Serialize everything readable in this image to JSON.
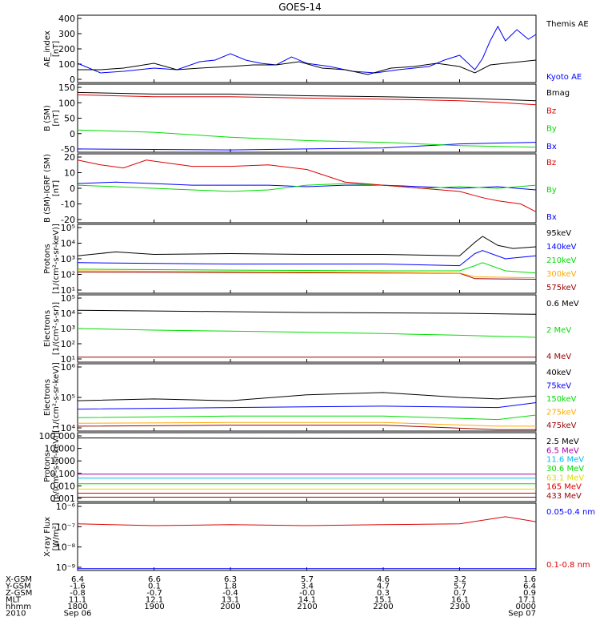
{
  "title": "GOES-14",
  "colors": {
    "black": "#000000",
    "blue": "#0000ff",
    "green": "#00dd00",
    "red": "#dd0000",
    "orange": "#ffaa00",
    "gold": "#dddd00",
    "cyan": "#00bbee",
    "purple": "#aa00aa",
    "darkred": "#990000"
  },
  "chart_data": [
    {
      "type": "line",
      "panel": "AE index",
      "ylabel": [
        "AE_index",
        "[nT]"
      ],
      "yticks": [
        "400",
        "300",
        "200",
        "100",
        "0"
      ],
      "ylim": [
        0,
        420
      ],
      "xlim": [
        18,
        24
      ],
      "series": [
        {
          "name": "Kyoto AE",
          "color": "blue",
          "x": [
            18.0,
            18.3,
            18.6,
            19.0,
            19.3,
            19.6,
            19.8,
            20.0,
            20.2,
            20.4,
            20.6,
            20.8,
            21.0,
            21.3,
            21.6,
            21.9,
            22.2,
            22.6,
            22.8,
            23.0,
            23.2,
            23.3,
            23.4,
            23.5,
            23.6,
            23.75,
            23.9,
            24.0
          ],
          "y": [
            120,
            60,
            70,
            90,
            80,
            130,
            140,
            180,
            140,
            120,
            110,
            160,
            120,
            100,
            70,
            60,
            80,
            100,
            140,
            170,
            80,
            150,
            260,
            350,
            260,
            330,
            270,
            300
          ]
        },
        {
          "name": "Themis AE",
          "color": "black",
          "x": [
            18.0,
            18.3,
            18.6,
            19.0,
            19.3,
            19.6,
            20.0,
            20.3,
            20.6,
            20.9,
            21.2,
            21.5,
            21.8,
            22.1,
            22.4,
            22.7,
            23.0,
            23.2,
            23.4,
            23.6,
            23.8,
            24.0
          ],
          "y": [
            80,
            80,
            90,
            120,
            80,
            90,
            100,
            110,
            110,
            130,
            90,
            80,
            50,
            90,
            100,
            120,
            100,
            60,
            110,
            120,
            130,
            140
          ]
        }
      ]
    },
    {
      "type": "line",
      "panel": "B (SM)",
      "ylabel": [
        "B (SM)",
        "[nT]"
      ],
      "yticks": [
        "150",
        "100",
        "50",
        "0",
        "-50"
      ],
      "ylim": [
        -55,
        150
      ],
      "xlim": [
        18,
        24
      ],
      "series": [
        {
          "name": "Bx",
          "color": "blue",
          "x": [
            18,
            20,
            21,
            22,
            23,
            24
          ],
          "y": [
            -45,
            -48,
            -45,
            -42,
            -30,
            -25
          ]
        },
        {
          "name": "By",
          "color": "green",
          "x": [
            18,
            19,
            20,
            21,
            22,
            23,
            24
          ],
          "y": [
            12,
            5,
            -10,
            -20,
            -25,
            -35,
            -40
          ]
        },
        {
          "name": "Bz",
          "color": "red",
          "x": [
            18,
            19,
            20,
            21,
            22,
            23,
            23.5,
            24
          ],
          "y": [
            118,
            112,
            112,
            108,
            105,
            100,
            95,
            88
          ]
        },
        {
          "name": "Bmag",
          "color": "black",
          "x": [
            18,
            19,
            20,
            21,
            22,
            23,
            24
          ],
          "y": [
            125,
            120,
            120,
            115,
            112,
            108,
            100
          ]
        }
      ]
    },
    {
      "type": "line",
      "panel": "B (SM)-IGRF (SM)",
      "ylabel": [
        "B (SM)-IGRF (SM)",
        "[nT]"
      ],
      "yticks": [
        "20",
        "10",
        "0",
        "-10",
        "-20"
      ],
      "ylim": [
        -22,
        22
      ],
      "xlim": [
        18,
        24
      ],
      "series": [
        {
          "name": "Bx",
          "color": "blue",
          "x": [
            18,
            18.5,
            19,
            19.5,
            20,
            20.5,
            21,
            21.5,
            22,
            22.5,
            23,
            23.5,
            24
          ],
          "y": [
            3,
            4,
            3,
            2,
            2,
            2,
            1,
            2,
            2,
            1,
            0,
            1,
            -1
          ]
        },
        {
          "name": "By",
          "color": "green",
          "x": [
            18,
            18.5,
            19,
            19.5,
            20,
            20.5,
            21,
            21.5,
            22,
            22.5,
            23,
            23.5,
            24
          ],
          "y": [
            2,
            1,
            0,
            -1,
            -2,
            -1,
            2,
            3,
            2,
            0,
            1,
            0,
            2
          ]
        },
        {
          "name": "Bz",
          "color": "red",
          "x": [
            18,
            18.3,
            18.6,
            18.9,
            19.2,
            19.5,
            20.0,
            20.5,
            21.0,
            21.5,
            22.0,
            22.5,
            23.0,
            23.3,
            23.5,
            23.8,
            24.0
          ],
          "y": [
            18,
            15,
            13,
            18,
            16,
            14,
            14,
            15,
            12,
            4,
            2,
            0,
            -2,
            -6,
            -8,
            -10,
            -15
          ]
        }
      ]
    },
    {
      "type": "line",
      "panel": "Protons",
      "ylabel": [
        "Protons",
        "[1/(cm²-s-sr-keV)]"
      ],
      "yticks": [
        "10⁵",
        "10⁴",
        "10³",
        "10²",
        "10¹"
      ],
      "yscale": "log",
      "ylim": [
        10,
        100000
      ],
      "xlim": [
        18,
        24
      ],
      "series": [
        {
          "name": "575keV",
          "color": "darkred",
          "x": [
            18,
            20,
            22,
            23,
            23.2,
            24
          ],
          "y": [
            170,
            160,
            150,
            145,
            70,
            65
          ]
        },
        {
          "name": "300keV",
          "color": "orange",
          "x": [
            18,
            20,
            22,
            23,
            23.2,
            24
          ],
          "y": [
            200,
            180,
            160,
            150,
            90,
            80
          ]
        },
        {
          "name": "210keV",
          "color": "green",
          "x": [
            18,
            20,
            22,
            23,
            23.2,
            23.3,
            23.6,
            24
          ],
          "y": [
            250,
            220,
            200,
            200,
            400,
            600,
            200,
            150
          ]
        },
        {
          "name": "140keV",
          "color": "blue",
          "x": [
            18,
            20,
            22,
            23,
            23.2,
            23.3,
            23.6,
            24
          ],
          "y": [
            600,
            500,
            500,
            400,
            2000,
            3000,
            1000,
            1500
          ]
        },
        {
          "name": "95keV",
          "color": "black",
          "x": [
            18,
            18.5,
            19,
            20,
            21,
            22,
            23,
            23.2,
            23.3,
            23.5,
            23.7,
            24
          ],
          "y": [
            1500,
            2500,
            1800,
            2000,
            1800,
            1800,
            1500,
            9000,
            20000,
            6000,
            4000,
            5000
          ]
        }
      ]
    },
    {
      "type": "line",
      "panel": "Electrons (MeV)",
      "ylabel": [
        "Electrons",
        "[1/(cm²-s-sr)]"
      ],
      "yticks": [
        "10⁵",
        "10⁴",
        "10³",
        "10²",
        "10¹"
      ],
      "yscale": "log",
      "ylim": [
        10,
        100000
      ],
      "xlim": [
        18,
        24
      ],
      "series": [
        {
          "name": "4 MeV",
          "color": "darkred",
          "x": [
            18,
            24
          ],
          "y": [
            20,
            20
          ]
        },
        {
          "name": "2 MeV",
          "color": "green",
          "x": [
            18,
            19,
            20,
            21,
            22,
            23,
            24
          ],
          "y": [
            1000,
            800,
            700,
            600,
            500,
            400,
            300
          ]
        },
        {
          "name": "0.6 MeV",
          "color": "black",
          "x": [
            18,
            19,
            20,
            21,
            22,
            23,
            24
          ],
          "y": [
            12000,
            11000,
            10000,
            9000,
            8500,
            8000,
            7000
          ]
        }
      ]
    },
    {
      "type": "line",
      "panel": "Electrons (keV)",
      "ylabel": [
        "Electrons",
        "[1/(cm²-s-sr-keV)]"
      ],
      "yticks": [
        "10⁶",
        "10⁵",
        "10⁴"
      ],
      "yscale": "log",
      "ylim": [
        10000,
        1000000
      ],
      "xlim": [
        18,
        24
      ],
      "series": [
        {
          "name": "475keV",
          "color": "darkred",
          "x": [
            18,
            20,
            22,
            23.5,
            24
          ],
          "y": [
            14000,
            15000,
            15000,
            11000,
            11000
          ]
        },
        {
          "name": "275keV",
          "color": "orange",
          "x": [
            18,
            20,
            22,
            23.5,
            24
          ],
          "y": [
            17000,
            18000,
            18000,
            14000,
            14000
          ]
        },
        {
          "name": "150keV",
          "color": "green",
          "x": [
            18,
            20,
            22,
            23.5,
            24
          ],
          "y": [
            25000,
            28000,
            28000,
            22000,
            30000
          ]
        },
        {
          "name": "75keV",
          "color": "blue",
          "x": [
            18,
            20,
            22,
            23.5,
            24
          ],
          "y": [
            45000,
            50000,
            55000,
            50000,
            70000
          ]
        },
        {
          "name": "40keV",
          "color": "black",
          "x": [
            18,
            19,
            20,
            21,
            22,
            23,
            23.5,
            24
          ],
          "y": [
            80000,
            90000,
            80000,
            120000,
            140000,
            100000,
            90000,
            110000
          ]
        }
      ]
    },
    {
      "type": "line",
      "panel": "Protons (MeV)",
      "ylabel": [
        "Protons",
        "[p/(cm²-s-sr-keV)]"
      ],
      "yticks": [
        "100.000",
        "10.000",
        "1.000",
        "0.100",
        "0.010",
        "0.001"
      ],
      "yscale": "log",
      "ylim": [
        0.0007,
        100
      ],
      "xlim": [
        18,
        24
      ],
      "series": [
        {
          "name": "433 MeV",
          "color": "darkred",
          "x": [
            18,
            24
          ],
          "y": [
            0.0015,
            0.0015
          ]
        },
        {
          "name": "165 MeV",
          "color": "red",
          "x": [
            18,
            24
          ],
          "y": [
            0.003,
            0.003
          ]
        },
        {
          "name": "63.1 MeV",
          "color": "gold",
          "x": [
            18,
            24
          ],
          "y": [
            0.006,
            0.006
          ]
        },
        {
          "name": "30.6 MeV",
          "color": "green",
          "x": [
            18,
            24
          ],
          "y": [
            0.015,
            0.015
          ]
        },
        {
          "name": "11.6 MeV",
          "color": "cyan",
          "x": [
            18,
            24
          ],
          "y": [
            0.04,
            0.04
          ]
        },
        {
          "name": "6.5 MeV",
          "color": "purple",
          "x": [
            18,
            24
          ],
          "y": [
            0.08,
            0.08
          ]
        },
        {
          "name": "2.5 MeV",
          "color": "black",
          "x": [
            18,
            24
          ],
          "y": [
            40,
            35
          ]
        }
      ]
    },
    {
      "type": "line",
      "panel": "X-ray Flux",
      "ylabel": [
        "X-ray Flux",
        "[W/m²]"
      ],
      "yticks": [
        "10⁻⁶",
        "10⁻⁷",
        "10⁻⁸",
        "10⁻⁹"
      ],
      "yscale": "log",
      "ylim": [
        1e-09,
        1e-06
      ],
      "xlim": [
        18,
        24
      ],
      "series": [
        {
          "name": "0.1-0.8 nm",
          "color": "red",
          "x": [
            18,
            19,
            20,
            21,
            22,
            23,
            23.6,
            24
          ],
          "y": [
            1.2e-07,
            1e-07,
            1.1e-07,
            1e-07,
            1.1e-07,
            1.2e-07,
            2.5e-07,
            1.5e-07
          ]
        },
        {
          "name": "0.05-0.4 nm",
          "color": "blue",
          "x": [
            18,
            24
          ],
          "y": [
            1.2e-09,
            1.2e-09
          ]
        }
      ]
    }
  ],
  "axis_rows": [
    {
      "label": "X-GSM",
      "values": [
        "6.4",
        "6.6",
        "6.3",
        "5.7",
        "4.6",
        "3.2",
        "1.6"
      ]
    },
    {
      "label": "Y-GSM",
      "values": [
        "-1.6",
        "0.1",
        "1.8",
        "3.4",
        "4.7",
        "5.7",
        "6.4"
      ]
    },
    {
      "label": "Z-GSM",
      "values": [
        "-0.8",
        "-0.7",
        "-0.4",
        "-0.0",
        "0.3",
        "0.7",
        "0.9"
      ]
    },
    {
      "label": "MLT",
      "values": [
        "11.1",
        "12.1",
        "13.1",
        "14.1",
        "15.1",
        "16.1",
        "17.1"
      ]
    },
    {
      "label": "hhmm",
      "values": [
        "1800",
        "1900",
        "2000",
        "2100",
        "2200",
        "2300",
        "0000"
      ]
    }
  ],
  "date_row": {
    "label": "2010",
    "start": "Sep 06",
    "end": "Sep 07"
  }
}
